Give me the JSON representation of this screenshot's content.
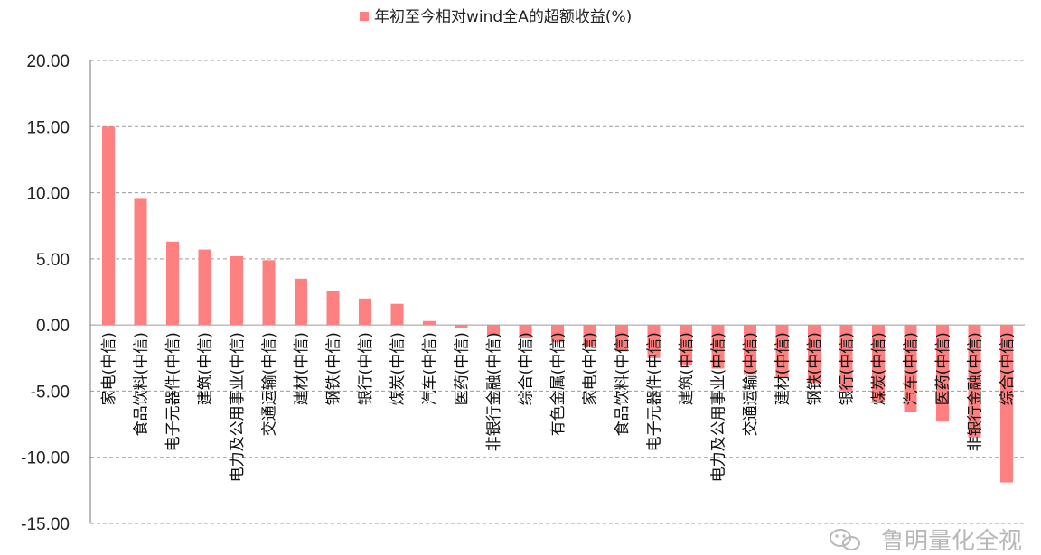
{
  "chart_data": {
    "type": "bar",
    "legend": "年初至今相对wind全A的超额收益(%)",
    "legend_position": "top-center",
    "grid": true,
    "ylim": [
      -15,
      20
    ],
    "yticks": [
      "20.00",
      "15.00",
      "10.00",
      "5.00",
      "0.00",
      "-5.00",
      "-10.00",
      "-15.00"
    ],
    "bar_color": "#ff8080",
    "categories": [
      "家电(中信)",
      "食品饮料(中信)",
      "电子元器件(中信)",
      "建筑(中信)",
      "电力及公用事业(中信)",
      "交通运输(中信)",
      "建材(中信)",
      "钢铁(中信)",
      "银行(中信)",
      "煤炭(中信)",
      "汽车(中信)",
      "医药(中信)",
      "非银行金融(中信)",
      "综合(中信)",
      "有色金属(中信)",
      "家电(中信)",
      "食品饮料(中信)",
      "电子元器件(中信)",
      "建筑(中信)",
      "电力及公用事业(中信)",
      "交通运输(中信)",
      "建材(中信)",
      "钢铁(中信)",
      "银行(中信)",
      "煤炭(中信)",
      "汽车(中信)",
      "医药(中信)",
      "非银行金融(中信)",
      "综合(中信)"
    ],
    "values": [
      15.0,
      9.6,
      6.3,
      5.7,
      5.2,
      4.9,
      3.5,
      2.6,
      2.0,
      1.6,
      0.3,
      -0.2,
      -0.8,
      -1.0,
      -1.3,
      -1.6,
      -2.0,
      -2.5,
      -3.0,
      -3.3,
      -3.7,
      -4.0,
      -4.4,
      -5.0,
      -5.8,
      -6.6,
      -7.3,
      -8.5,
      -11.9
    ]
  },
  "watermark": {
    "icon": "wechat-icon",
    "text": "鲁明量化全视"
  }
}
